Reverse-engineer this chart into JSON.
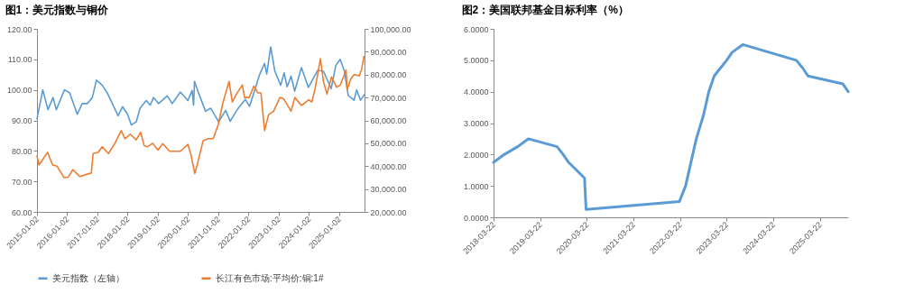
{
  "chart_data": [
    {
      "type": "line",
      "title": "图1：美元指数与铜价",
      "legend": "bottom",
      "xlim": [
        "2015-01-02",
        "2025-11-04"
      ],
      "xticks": [
        "2015-01-02",
        "2016-01-02",
        "2017-01-02",
        "2018-01-02",
        "2019-01-02",
        "2020-01-02",
        "2021-01-02",
        "2022-01-02",
        "2023-01-02",
        "2024-01-02",
        "2025-01-02"
      ],
      "ylim": [
        60,
        120
      ],
      "yticks": [
        {
          "value": 60,
          "label": "60.00"
        },
        {
          "value": 70,
          "label": "70.00"
        },
        {
          "value": 80,
          "label": "80.00"
        },
        {
          "value": 90,
          "label": "90.00"
        },
        {
          "value": 100,
          "label": "100.00"
        },
        {
          "value": 110,
          "label": "110.00"
        },
        {
          "value": 120,
          "label": "120.00"
        }
      ],
      "y2lim": [
        20000,
        100000
      ],
      "y2ticks": [
        {
          "value": 20000,
          "label": "20,000.00"
        },
        {
          "value": 30000,
          "label": "30,000.00"
        },
        {
          "value": 40000,
          "label": "40,000.00"
        },
        {
          "value": 50000,
          "label": "50,000.00"
        },
        {
          "value": 60000,
          "label": "60,000.00"
        },
        {
          "value": 70000,
          "label": "70,000.00"
        },
        {
          "value": 80000,
          "label": "80,000.00"
        },
        {
          "value": 90000,
          "label": "90,000.00"
        },
        {
          "value": 100000,
          "label": "100,000.00"
        }
      ],
      "series": [
        {
          "name": "美元指数（左轴）",
          "color": "#5b9bd5",
          "axis": "y",
          "x": [
            "2015-01-02",
            "2015-03-13",
            "2015-05-15",
            "2015-07-15",
            "2015-08-24",
            "2015-11-30",
            "2016-02-01",
            "2016-05-03",
            "2016-07-01",
            "2016-09-01",
            "2016-11-01",
            "2016-12-20",
            "2017-03-01",
            "2017-05-01",
            "2017-07-01",
            "2017-09-08",
            "2017-11-01",
            "2018-01-01",
            "2018-02-15",
            "2018-04-15",
            "2018-06-01",
            "2018-08-15",
            "2018-10-01",
            "2018-11-12",
            "2019-01-10",
            "2019-04-25",
            "2019-06-25",
            "2019-10-01",
            "2019-12-31",
            "2020-02-20",
            "2020-03-09",
            "2020-03-20",
            "2020-05-01",
            "2020-07-31",
            "2020-10-01",
            "2021-01-06",
            "2021-03-31",
            "2021-05-25",
            "2021-08-20",
            "2021-11-24",
            "2022-01-14",
            "2022-03-07",
            "2022-05-13",
            "2022-07-14",
            "2022-08-10",
            "2022-09-27",
            "2022-11-15",
            "2023-01-26",
            "2023-03-08",
            "2023-04-14",
            "2023-05-31",
            "2023-07-14",
            "2023-10-03",
            "2023-12-27",
            "2024-04-16",
            "2024-06-26",
            "2024-09-27",
            "2024-11-22",
            "2025-01-13",
            "2025-03-03",
            "2025-04-21",
            "2025-06-30",
            "2025-08-01",
            "2025-09-17",
            "2025-11-04"
          ],
          "values": [
            90.5,
            100.0,
            93.5,
            97.5,
            93.5,
            100.0,
            99.0,
            92.0,
            95.5,
            95.5,
            97.5,
            103.2,
            101.5,
            99.0,
            95.5,
            91.5,
            94.5,
            92.0,
            88.5,
            89.5,
            94.0,
            96.5,
            95.0,
            97.5,
            95.5,
            98.0,
            95.5,
            99.3,
            96.5,
            99.8,
            95.0,
            102.8,
            99.5,
            93.0,
            94.0,
            89.5,
            93.3,
            89.7,
            93.6,
            96.9,
            94.6,
            99.0,
            104.8,
            108.7,
            105.2,
            114.1,
            106.2,
            101.5,
            105.6,
            101.0,
            104.5,
            99.6,
            107.3,
            100.8,
            106.4,
            106.1,
            100.4,
            108.0,
            110.0,
            106.5,
            98.2,
            96.6,
            100.0,
            96.6,
            98.5
          ]
        },
        {
          "name": "长江有色市场:平均价:铜:1#",
          "color": "#ed7d31",
          "axis": "y2",
          "x": [
            "2015-01-02",
            "2015-01-26",
            "2015-05-10",
            "2015-07-10",
            "2015-09-01",
            "2015-11-24",
            "2016-01-15",
            "2016-03-10",
            "2016-06-01",
            "2016-09-01",
            "2016-10-20",
            "2016-11-11",
            "2017-01-10",
            "2017-03-01",
            "2017-05-15",
            "2017-08-01",
            "2017-10-16",
            "2017-12-01",
            "2018-02-01",
            "2018-04-15",
            "2018-06-08",
            "2018-07-20",
            "2018-09-01",
            "2018-11-01",
            "2019-01-03",
            "2019-03-01",
            "2019-05-25",
            "2019-08-01",
            "2019-10-01",
            "2019-12-31",
            "2020-02-03",
            "2020-03-23",
            "2020-05-01",
            "2020-07-01",
            "2020-09-01",
            "2020-11-01",
            "2020-12-31",
            "2021-02-25",
            "2021-05-11",
            "2021-06-20",
            "2021-08-01",
            "2021-10-19",
            "2021-11-15",
            "2022-01-10",
            "2022-03-07",
            "2022-04-25",
            "2022-06-01",
            "2022-07-15",
            "2022-09-01",
            "2022-11-01",
            "2023-01-16",
            "2023-03-01",
            "2023-05-31",
            "2023-07-15",
            "2023-10-03",
            "2023-12-31",
            "2024-02-05",
            "2024-03-18",
            "2024-05-20",
            "2024-06-25",
            "2024-08-07",
            "2024-10-01",
            "2024-12-01",
            "2025-01-15",
            "2025-03-26",
            "2025-04-09",
            "2025-05-20",
            "2025-07-01",
            "2025-09-01",
            "2025-10-01",
            "2025-10-29"
          ],
          "values": [
            44500,
            40500,
            46000,
            40500,
            40000,
            35000,
            35200,
            38500,
            35500,
            36500,
            37000,
            45500,
            46000,
            48500,
            45500,
            50000,
            55500,
            52000,
            54000,
            51500,
            54800,
            49000,
            48500,
            50000,
            47000,
            49800,
            46500,
            46500,
            46500,
            49500,
            45500,
            36800,
            42000,
            51000,
            52000,
            52000,
            58000,
            67500,
            77000,
            68000,
            71000,
            75500,
            70000,
            70000,
            75000,
            72000,
            72000,
            55500,
            62500,
            64000,
            70000,
            69500,
            64000,
            70000,
            66500,
            69000,
            68000,
            74000,
            87000,
            77000,
            71500,
            79000,
            74500,
            75500,
            82000,
            73500,
            78000,
            80000,
            79500,
            82500,
            88000
          ]
        }
      ]
    },
    {
      "type": "line",
      "title": "图2：美国联邦基金目标利率（%）",
      "xlim": [
        "2018-03-22",
        "2025-10-30"
      ],
      "xticks": [
        "2018-03-22",
        "2019-03-22",
        "2020-03-22",
        "2021-03-22",
        "2022-03-22",
        "2023-03-22",
        "2024-03-22",
        "2025-03-22"
      ],
      "ylim": [
        0,
        6
      ],
      "yticks": [
        {
          "value": 0,
          "label": "0.0000"
        },
        {
          "value": 1,
          "label": "1.0000"
        },
        {
          "value": 2,
          "label": "2.0000"
        },
        {
          "value": 3,
          "label": "3.0000"
        },
        {
          "value": 4,
          "label": "4.0000"
        },
        {
          "value": 5,
          "label": "5.0000"
        },
        {
          "value": 6,
          "label": "6.0000"
        }
      ],
      "series": [
        {
          "color": "#5b9bd5",
          "x": [
            "2018-03-22",
            "2018-06-14",
            "2018-09-27",
            "2018-12-20",
            "2019-08-01",
            "2019-09-19",
            "2019-10-31",
            "2020-03-04",
            "2020-03-16",
            "2022-03-17",
            "2022-05-05",
            "2022-06-16",
            "2022-07-28",
            "2022-09-22",
            "2022-11-03",
            "2022-12-15",
            "2023-02-02",
            "2023-03-23",
            "2023-05-04",
            "2023-07-27",
            "2024-09-19",
            "2024-11-08",
            "2024-12-19",
            "2025-09-18",
            "2025-10-30"
          ],
          "values": [
            1.75,
            2.0,
            2.25,
            2.5,
            2.25,
            2.0,
            1.75,
            1.25,
            0.25,
            0.5,
            1.0,
            1.75,
            2.5,
            3.25,
            4.0,
            4.5,
            4.75,
            5.0,
            5.25,
            5.5,
            5.0,
            4.75,
            4.5,
            4.25,
            4.0
          ]
        }
      ]
    }
  ]
}
